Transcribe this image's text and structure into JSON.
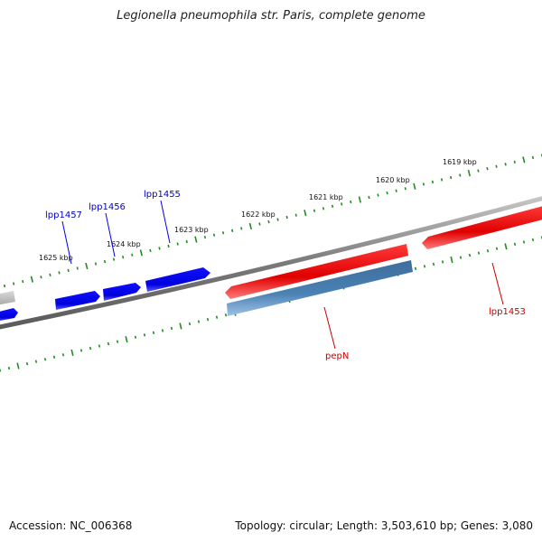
{
  "title": "Legionella pneumophila str. Paris, complete genome",
  "footer": {
    "accession": "Accession: NC_006368",
    "summary": "Topology: circular; Length: 3,503,610 bp; Genes: 3,080"
  },
  "scale_labels": [
    "1619 kbp",
    "1620 kbp",
    "1621 kbp",
    "1622 kbp",
    "1623 kbp",
    "1624 kbp",
    "1625 kbp"
  ],
  "genes": [
    {
      "name": "lpp1457",
      "strand": "forward",
      "color": "#0000ee"
    },
    {
      "name": "lpp1456",
      "strand": "forward",
      "color": "#0000ee"
    },
    {
      "name": "lpp1455",
      "strand": "forward",
      "color": "#0000ee"
    },
    {
      "name": "pepN",
      "strand": "reverse",
      "color": "#ee0000"
    },
    {
      "name": "lpp1453",
      "strand": "reverse",
      "color": "#ee0000"
    }
  ],
  "colors": {
    "forward_gene": "#0000ee",
    "reverse_gene": "#ee0000",
    "feature_steelblue": "#4682b4",
    "backbone": "#808080",
    "ticks": "#228b22"
  }
}
